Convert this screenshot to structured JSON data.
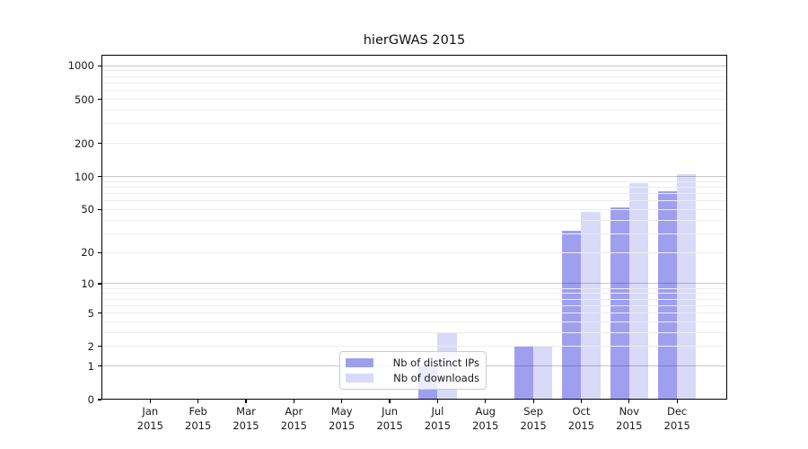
{
  "chart_data": {
    "type": "bar",
    "title": "hierGWAS 2015",
    "year_label": "2015",
    "categories": [
      "Jan",
      "Feb",
      "Mar",
      "Apr",
      "May",
      "Jun",
      "Jul",
      "Aug",
      "Sep",
      "Oct",
      "Nov",
      "Dec"
    ],
    "series": [
      {
        "name": "Nb of distinct IPs",
        "color": "#9f9ff0",
        "values": [
          0,
          0,
          0,
          0,
          0,
          0,
          1,
          0,
          2,
          32,
          52,
          73
        ]
      },
      {
        "name": "Nb of downloads",
        "color": "#d9d9f8",
        "values": [
          0,
          0,
          0,
          0,
          0,
          0,
          3,
          0,
          2,
          48,
          88,
          105
        ]
      }
    ],
    "yscale": "log1p",
    "ylim": [
      0,
      1260
    ],
    "yticks": [
      0,
      1,
      2,
      5,
      10,
      20,
      50,
      100,
      200,
      500,
      1000
    ],
    "grid": {
      "major_values": [
        1,
        10,
        100,
        1000
      ],
      "minor_values": [
        2,
        3,
        4,
        5,
        6,
        7,
        8,
        9,
        20,
        30,
        40,
        50,
        60,
        70,
        80,
        90,
        200,
        300,
        400,
        500,
        600,
        700,
        800,
        900
      ],
      "major_color": "rgba(0,0,0,0.22)",
      "minor_color": "#ededed"
    },
    "legend_position": "lower-center",
    "axis_color": "#000000",
    "text_color": "#1a1a1a"
  }
}
